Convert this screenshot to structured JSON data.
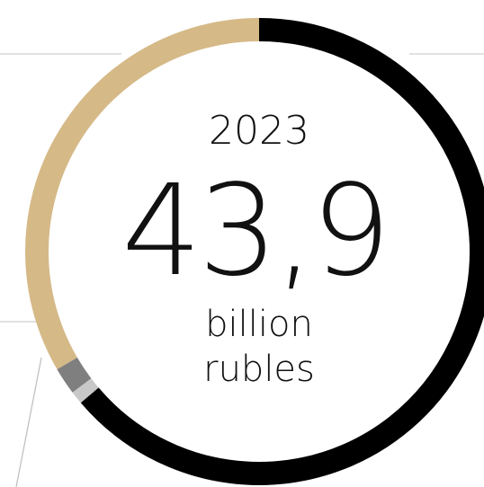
{
  "chart_data": {
    "type": "pie",
    "title": "2023",
    "total_value": "43,9",
    "unit_line1": "billion",
    "unit_line2": "rubles",
    "slices": [
      {
        "share": 0.638,
        "color": "#000000"
      },
      {
        "share": 0.009,
        "color": "#c8c8c8"
      },
      {
        "share": 0.019,
        "color": "#7f7f7f"
      },
      {
        "share": 0.334,
        "color": "#d5b987"
      }
    ]
  }
}
